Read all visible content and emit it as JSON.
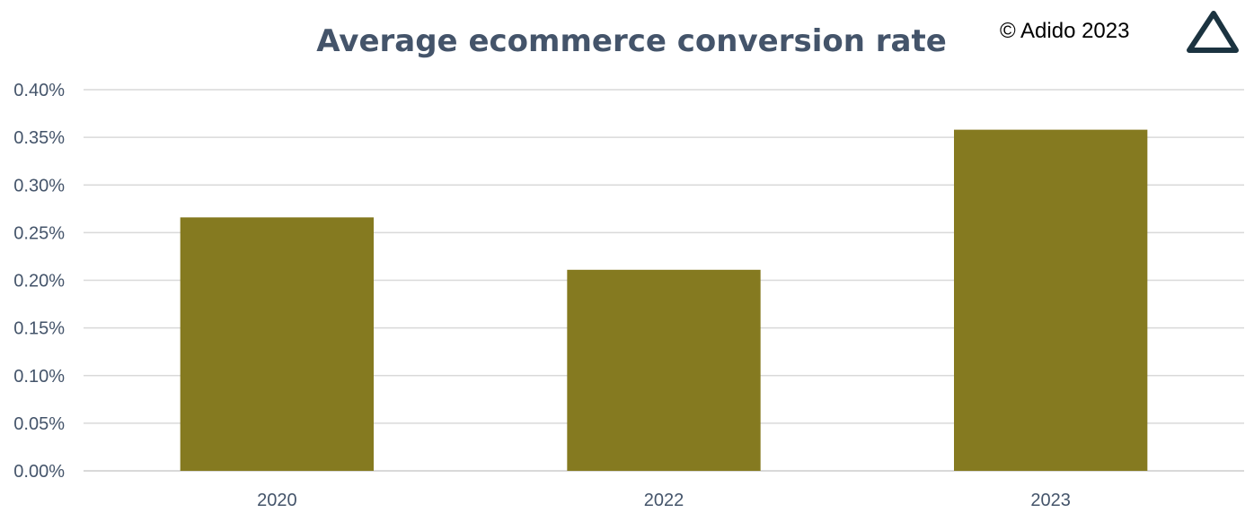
{
  "colors": {
    "bar": "#857a20",
    "gridline": "#d9d9d9",
    "axis_text": "#44546a",
    "title": "#44546a",
    "logo": "#1b3340"
  },
  "copyright": "© Adido 2023",
  "logo_icon": "triangle-logo-icon",
  "chart_data": {
    "type": "bar",
    "title": "Average ecommerce conversion rate",
    "xlabel": "",
    "ylabel": "",
    "categories": [
      "2020",
      "2022",
      "2023"
    ],
    "values": [
      0.266,
      0.211,
      0.358
    ],
    "value_unit": "%",
    "ylim": [
      0,
      0.4
    ],
    "yticks": [
      "0.00%",
      "0.05%",
      "0.10%",
      "0.15%",
      "0.20%",
      "0.25%",
      "0.30%",
      "0.35%",
      "0.40%"
    ],
    "grid": true,
    "legend": "none"
  }
}
